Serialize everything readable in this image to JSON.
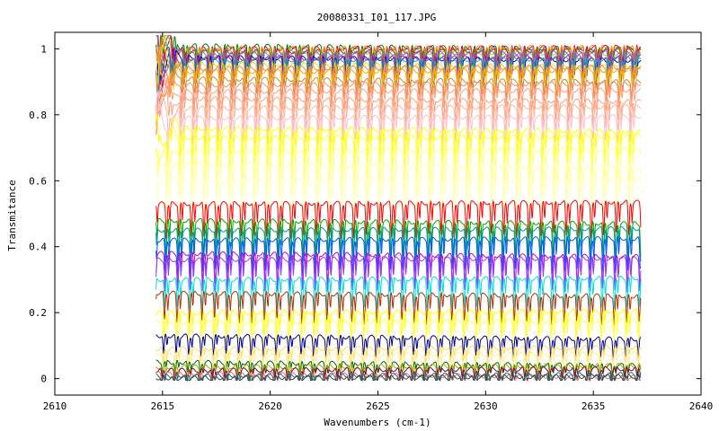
{
  "chart_data": {
    "type": "line",
    "title": "20080331_I01_117.JPG",
    "xlabel": "Wavenumbers (cm-1)",
    "ylabel": "Transmitance",
    "xlim": [
      2610,
      2640
    ],
    "ylim": [
      -0.05,
      1.05
    ],
    "x_ticks": [
      "2610",
      "2615",
      "2620",
      "2625",
      "2630",
      "2635",
      "2640"
    ],
    "y_ticks": [
      "0",
      "0.2",
      "0.4",
      "0.6",
      "0.8",
      "1"
    ],
    "grid": false,
    "legend": "none",
    "x_range_data": [
      2614.7,
      2637.2
    ],
    "absorption_period_cm1": 0.58,
    "series": [
      {
        "color": "#008000",
        "level": 1.01
      },
      {
        "color": "#cc0077",
        "level": 1.0
      },
      {
        "color": "#ff8c00",
        "level": 1.0
      },
      {
        "color": "#9acd32",
        "level": 0.995
      },
      {
        "color": "#8b4513",
        "level": 0.99
      },
      {
        "color": "#7b68ee",
        "level": 0.985
      },
      {
        "color": "#0000cd",
        "level": 0.975
      },
      {
        "color": "#c71585",
        "level": 0.97
      },
      {
        "color": "#20b2aa",
        "level": 0.965
      },
      {
        "color": "#ffd700",
        "level": 0.955
      },
      {
        "color": "#ff7f50",
        "level": 0.94
      },
      {
        "color": "#ffa500",
        "level": 0.93
      },
      {
        "color": "#cd853f",
        "level": 0.91
      },
      {
        "color": "#ff8c69",
        "level": 0.89
      },
      {
        "color": "#ffa07a",
        "level": 0.87
      },
      {
        "color": "#ffa07a",
        "level": 0.85
      },
      {
        "color": "#ffb6a1",
        "level": 0.82
      },
      {
        "color": "#ffc0cb",
        "level": 0.79
      },
      {
        "color": "#ffff00",
        "level": 0.76
      },
      {
        "color": "#ffff40",
        "level": 0.73
      },
      {
        "color": "#ffff80",
        "level": 0.69
      },
      {
        "color": "#ffffa0",
        "level": 0.65
      },
      {
        "color": "#ffffc0",
        "level": 0.6
      },
      {
        "color": "#ff0000",
        "level": 0.53
      },
      {
        "color": "#00aa00",
        "level": 0.48
      },
      {
        "color": "#009999",
        "level": 0.45
      },
      {
        "color": "#0055ff",
        "level": 0.42
      },
      {
        "color": "#cc00cc",
        "level": 0.38
      },
      {
        "color": "#8844ff",
        "level": 0.36
      },
      {
        "color": "#00dddd",
        "level": 0.3
      },
      {
        "color": "#b03000",
        "level": 0.26
      },
      {
        "color": "#ffff00",
        "level": 0.2
      },
      {
        "color": "#ffff66",
        "level": 0.17
      },
      {
        "color": "#000099",
        "level": 0.13
      },
      {
        "color": "#ffdd55",
        "level": 0.09
      },
      {
        "color": "#ffee99",
        "level": 0.07
      },
      {
        "color": "#006600",
        "level": 0.05
      },
      {
        "color": "#aaaa00",
        "level": 0.035
      },
      {
        "color": "#800040",
        "level": 0.025
      },
      {
        "color": "#ff6666",
        "level": 0.015
      },
      {
        "color": "#008080",
        "level": 0.008
      },
      {
        "color": "#444444",
        "level": 0.002
      }
    ]
  }
}
